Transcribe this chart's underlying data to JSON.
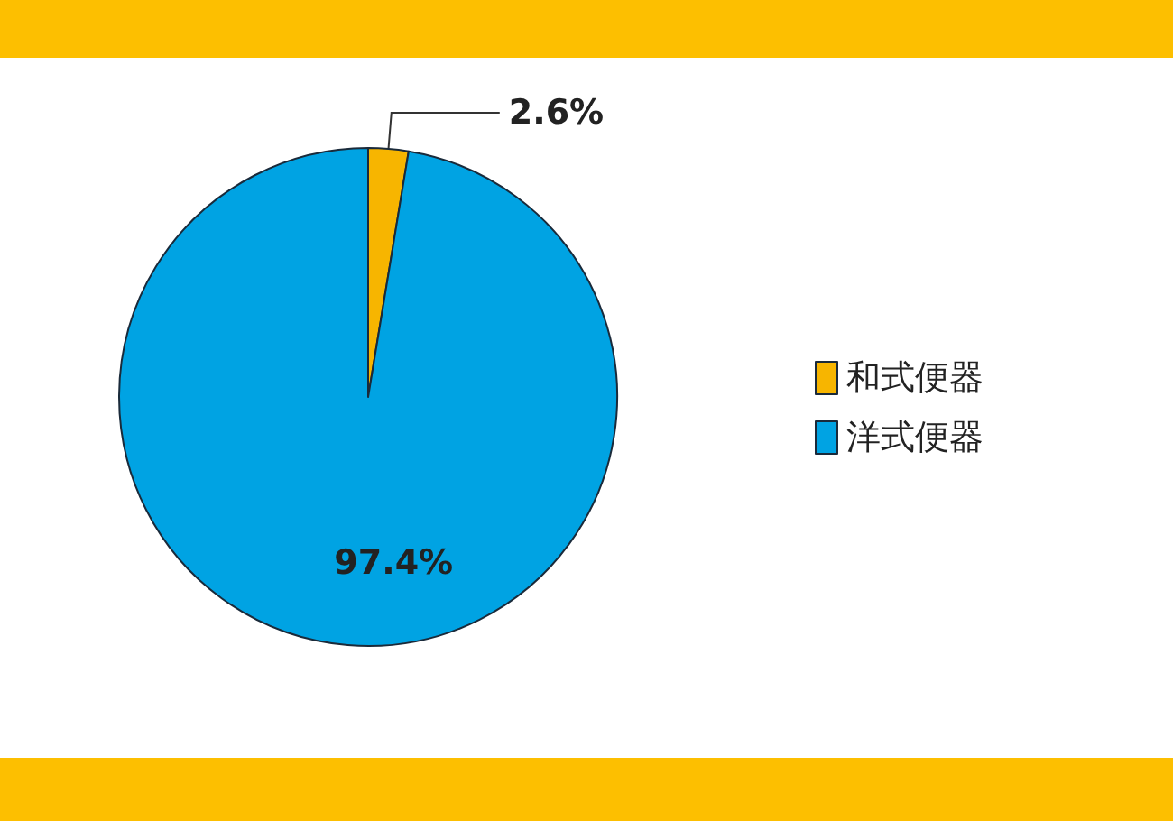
{
  "chart_data": {
    "type": "pie",
    "categories": [
      "和式便器",
      "洋式便器"
    ],
    "values": [
      2.6,
      97.4
    ],
    "colors": [
      "#f7b500",
      "#00a3e3"
    ],
    "value_labels": [
      "2.6%",
      "97.4%"
    ],
    "legend": "right"
  }
}
